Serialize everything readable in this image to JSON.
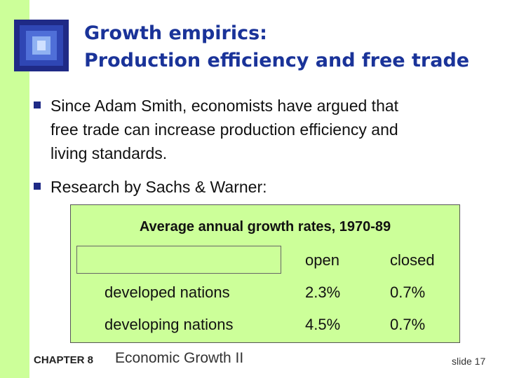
{
  "title": {
    "line1": "Growth empirics:",
    "line2": "Production efficiency and free trade"
  },
  "bullets": [
    {
      "lines": [
        "Since Adam Smith, economists have argued that",
        "free trade can increase production efficiency and",
        "living standards."
      ]
    },
    {
      "lines": [
        "Research by Sachs & Warner:"
      ]
    }
  ],
  "table": {
    "caption": "Average annual growth rates, 1970-89",
    "columns": [
      "",
      "open",
      "closed"
    ],
    "rows": [
      [
        "developed nations",
        "2.3%",
        "0.7%"
      ],
      [
        "developing nations",
        "4.5%",
        "0.7%"
      ]
    ]
  },
  "footer": {
    "chapter": "CHAPTER 8",
    "title": "Economic Growth II",
    "slide": "slide 17"
  },
  "colors": {
    "accent_green": "#ccff99",
    "title_blue": "#1a3399",
    "bullet_navy": "#1f2a86"
  }
}
